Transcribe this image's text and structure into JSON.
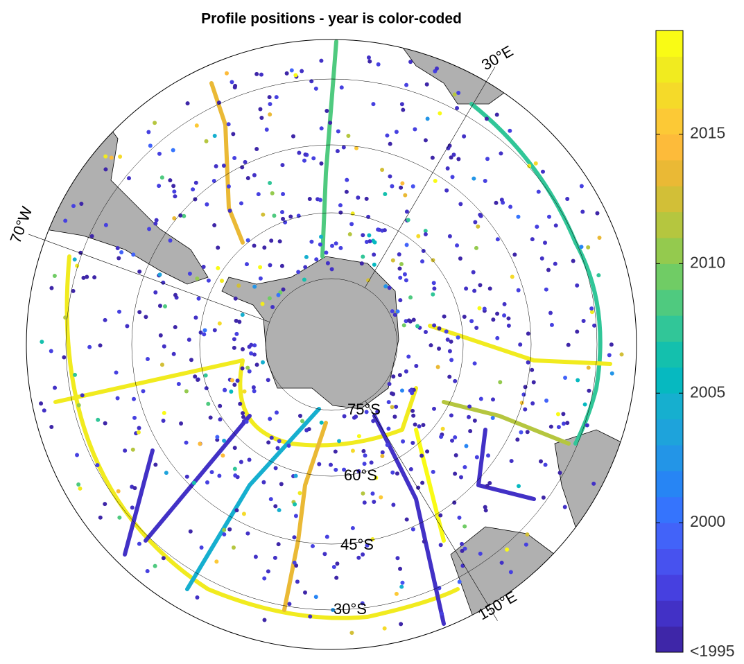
{
  "chart_data": {
    "type": "polar-map",
    "title": "Profile positions - year is color-coded",
    "map_labels": [
      "30°E",
      "70°W",
      "150°E",
      "75°S",
      "60°S",
      "45°S",
      "30°S"
    ],
    "colorbar": {
      "clim": [
        1995,
        2019
      ],
      "ticks": [
        2015,
        2010,
        2005,
        2000,
        {
          "value": 1995,
          "label": "<1995"
        }
      ],
      "colormap": [
        "#3e26a8",
        "#4231c6",
        "#4640e0",
        "#4752ef",
        "#4263f9",
        "#3574fd",
        "#2785f4",
        "#2395e7",
        "#1ea3db",
        "#16afcf",
        "#06b9c0",
        "#14c0ad",
        "#31c698",
        "#4fca7f",
        "#70cc65",
        "#94ca4e",
        "#b5c63f",
        "#d2bf37",
        "#eab935",
        "#fdbb3a",
        "#fcc936",
        "#f5da29",
        "#f1eb1f",
        "#f9fb15"
      ]
    }
  }
}
